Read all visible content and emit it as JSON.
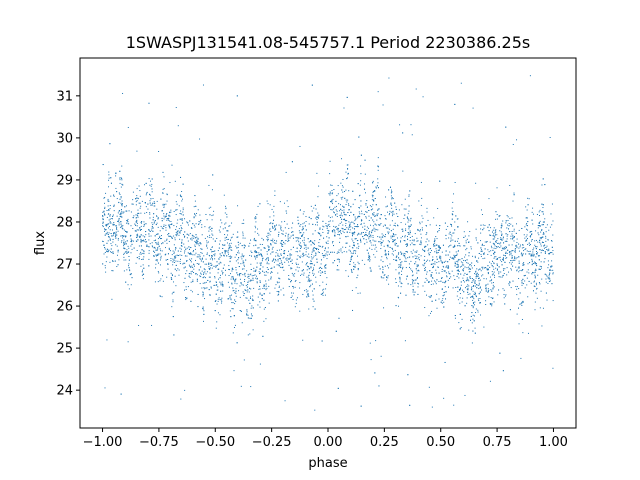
{
  "chart_data": {
    "type": "scatter",
    "title": "1SWASPJ131541.08-545757.1 Period 2230386.25s",
    "xlabel": "phase",
    "ylabel": "flux",
    "xlim": [
      -1.1,
      1.1
    ],
    "ylim": [
      23.1,
      31.9
    ],
    "grid": false,
    "legend": "none",
    "marker_color": "#1f77b4",
    "x_ticks": [
      -1.0,
      -0.75,
      -0.5,
      -0.25,
      0.0,
      0.25,
      0.5,
      0.75,
      1.0
    ],
    "x_tick_labels": [
      "−1.00",
      "−0.75",
      "−0.50",
      "−0.25",
      "0.00",
      "0.25",
      "0.50",
      "0.75",
      "1.00"
    ],
    "y_ticks": [
      24,
      25,
      26,
      27,
      28,
      29,
      30,
      31
    ],
    "y_tick_labels": [
      "24",
      "25",
      "26",
      "27",
      "28",
      "29",
      "30",
      "31"
    ],
    "series": [
      {
        "phase_range": [
          -1.0,
          1.0
        ],
        "flux_profile": [
          {
            "phase": 0.0,
            "flux": 27.4
          },
          {
            "phase": 0.05,
            "flux": 28.1
          },
          {
            "phase": 0.1,
            "flux": 27.7
          },
          {
            "phase": 0.2,
            "flux": 27.9
          },
          {
            "phase": 0.3,
            "flux": 27.6
          },
          {
            "phase": 0.4,
            "flux": 27.3
          },
          {
            "phase": 0.45,
            "flux": 27.1
          },
          {
            "phase": 0.5,
            "flux": 26.9
          },
          {
            "phase": 0.55,
            "flux": 27.2
          },
          {
            "phase": 0.62,
            "flux": 26.6
          },
          {
            "phase": 0.7,
            "flux": 26.9
          },
          {
            "phase": 0.78,
            "flux": 27.4
          },
          {
            "phase": 0.85,
            "flux": 27.1
          },
          {
            "phase": 0.92,
            "flux": 27.3
          },
          {
            "phase": 1.0,
            "flux": 27.4
          }
        ],
        "flux_scatter": 0.5,
        "outlier_range": [
          23.5,
          31.5
        ]
      }
    ]
  }
}
